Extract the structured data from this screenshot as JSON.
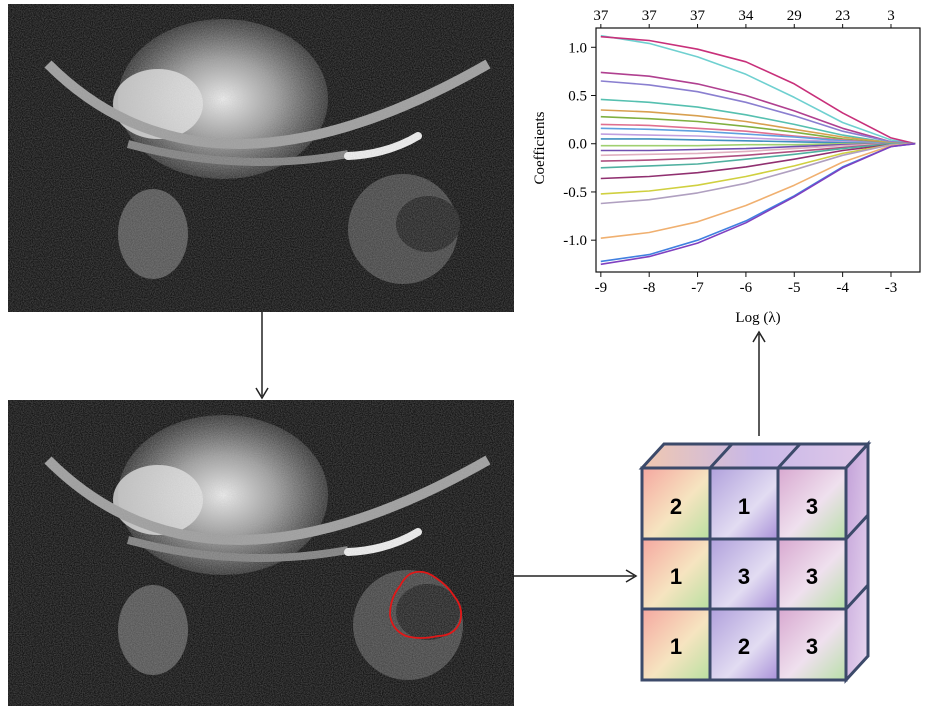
{
  "chart_data": {
    "type": "line",
    "xlabel": "Log (λ)",
    "ylabel": "Coefficients",
    "xlim": [
      -9.1,
      -2.4
    ],
    "ylim": [
      -1.33,
      1.2
    ],
    "x_ticks": [
      -9,
      -8,
      -7,
      -6,
      -5,
      -4,
      -3
    ],
    "y_ticks": [
      -1.0,
      -0.5,
      0.0,
      0.5,
      1.0
    ],
    "top_axis_labels": [
      "37",
      "37",
      "37",
      "34",
      "29",
      "23",
      "3"
    ],
    "series": [
      {
        "color": "#6fd0d0",
        "values": [
          1.12,
          1.04,
          0.9,
          0.72,
          0.48,
          0.22,
          0.04,
          0.0
        ]
      },
      {
        "color": "#c8307a",
        "values": [
          1.11,
          1.07,
          0.98,
          0.85,
          0.62,
          0.32,
          0.06,
          0.0
        ]
      },
      {
        "color": "#b04090",
        "values": [
          0.74,
          0.7,
          0.62,
          0.5,
          0.34,
          0.16,
          0.02,
          0.0
        ]
      },
      {
        "color": "#8a7fd0",
        "values": [
          0.65,
          0.61,
          0.54,
          0.43,
          0.29,
          0.13,
          0.02,
          0.0
        ]
      },
      {
        "color": "#56c0b0",
        "values": [
          0.46,
          0.43,
          0.38,
          0.3,
          0.2,
          0.09,
          0.01,
          0.0
        ]
      },
      {
        "color": "#d8a050",
        "values": [
          0.35,
          0.33,
          0.29,
          0.23,
          0.15,
          0.07,
          0.01,
          0.0
        ]
      },
      {
        "color": "#80b040",
        "values": [
          0.28,
          0.26,
          0.23,
          0.18,
          0.12,
          0.05,
          0.0,
          0.0
        ]
      },
      {
        "color": "#e07090",
        "values": [
          0.2,
          0.19,
          0.16,
          0.13,
          0.08,
          0.04,
          0.0,
          0.0
        ]
      },
      {
        "color": "#60a0e0",
        "values": [
          0.16,
          0.15,
          0.13,
          0.1,
          0.07,
          0.03,
          0.0,
          0.0
        ]
      },
      {
        "color": "#c0a0e0",
        "values": [
          0.1,
          0.09,
          0.08,
          0.06,
          0.04,
          0.02,
          0.0,
          0.0
        ]
      },
      {
        "color": "#4090c0",
        "values": [
          0.05,
          0.05,
          0.04,
          0.03,
          0.02,
          0.01,
          0.0,
          0.0
        ]
      },
      {
        "color": "#a0d070",
        "values": [
          -0.02,
          -0.02,
          -0.02,
          -0.01,
          -0.01,
          0.0,
          0.0,
          0.0
        ]
      },
      {
        "color": "#7050b0",
        "values": [
          -0.07,
          -0.07,
          -0.06,
          -0.05,
          -0.03,
          -0.01,
          0.0,
          0.0
        ]
      },
      {
        "color": "#e0b0c0",
        "values": [
          -0.12,
          -0.11,
          -0.1,
          -0.08,
          -0.05,
          -0.02,
          0.0,
          0.0
        ]
      },
      {
        "color": "#b05080",
        "values": [
          -0.18,
          -0.17,
          -0.15,
          -0.12,
          -0.08,
          -0.04,
          0.0,
          0.0
        ]
      },
      {
        "color": "#50b0a0",
        "values": [
          -0.25,
          -0.23,
          -0.21,
          -0.16,
          -0.11,
          -0.05,
          0.0,
          0.0
        ]
      },
      {
        "color": "#903070",
        "values": [
          -0.36,
          -0.34,
          -0.3,
          -0.24,
          -0.16,
          -0.07,
          -0.01,
          0.0
        ]
      },
      {
        "color": "#d0d040",
        "values": [
          -0.52,
          -0.49,
          -0.43,
          -0.34,
          -0.23,
          -0.1,
          -0.01,
          0.0
        ]
      },
      {
        "color": "#b0a0c0",
        "values": [
          -0.62,
          -0.58,
          -0.51,
          -0.41,
          -0.27,
          -0.12,
          -0.01,
          0.0
        ]
      },
      {
        "color": "#f0b070",
        "values": [
          -0.98,
          -0.92,
          -0.81,
          -0.64,
          -0.43,
          -0.19,
          -0.02,
          0.0
        ]
      },
      {
        "color": "#4080e0",
        "values": [
          -1.22,
          -1.15,
          -1.0,
          -0.8,
          -0.54,
          -0.24,
          -0.03,
          0.0
        ]
      },
      {
        "color": "#8040c0",
        "values": [
          -1.25,
          -1.17,
          -1.03,
          -0.82,
          -0.55,
          -0.25,
          -0.03,
          0.0
        ]
      }
    ]
  },
  "cube": {
    "rows": [
      [
        "2",
        "1",
        "3"
      ],
      [
        "1",
        "3",
        "3"
      ],
      [
        "1",
        "2",
        "3"
      ]
    ]
  }
}
